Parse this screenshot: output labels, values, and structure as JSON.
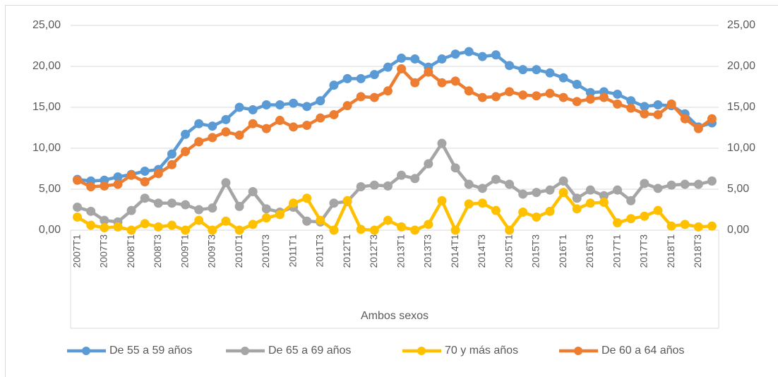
{
  "chart_data": {
    "type": "line",
    "x_label": "Ambos sexos",
    "categories": [
      "2007T1",
      null,
      "2007T3",
      null,
      "2008T1",
      null,
      "2008T3",
      null,
      "2009T1",
      null,
      "2009T3",
      null,
      "2010T1",
      null,
      "2010T3",
      null,
      "2011T1",
      null,
      "2011T3",
      null,
      "2012T1",
      null,
      "2012T3",
      null,
      "2013T1",
      null,
      "2013T3",
      null,
      "2014T1",
      null,
      "2014T3",
      null,
      "2015T1",
      null,
      "2015T3",
      null,
      "2016T1",
      null,
      "2016T3",
      null,
      "2017T1",
      null,
      "2017T3",
      null,
      "2018T1",
      null,
      "2018T3",
      null
    ],
    "series": [
      {
        "name": "De 55 a 59 años",
        "color": "#5b9bd5",
        "values": [
          6.2,
          6.0,
          6.1,
          6.5,
          6.8,
          7.2,
          7.4,
          9.3,
          11.7,
          13.0,
          12.7,
          13.5,
          15.0,
          14.7,
          15.3,
          15.3,
          15.5,
          15.1,
          15.8,
          17.7,
          18.5,
          18.5,
          19.0,
          19.9,
          21.0,
          20.9,
          19.9,
          20.9,
          21.5,
          21.8,
          21.2,
          21.4,
          20.1,
          19.6,
          19.6,
          19.2,
          18.6,
          17.8,
          16.8,
          16.9,
          16.6,
          15.8,
          15.1,
          15.3,
          15.2,
          14.2,
          12.6,
          13.1
        ]
      },
      {
        "name": "De 65 a 69 años",
        "color": "#a5a5a5",
        "values": [
          2.8,
          2.3,
          1.2,
          1.0,
          2.4,
          3.9,
          3.3,
          3.3,
          3.1,
          2.5,
          2.7,
          5.8,
          2.9,
          4.7,
          2.6,
          2.2,
          2.8,
          1.1,
          1.0,
          3.3,
          3.5,
          5.3,
          5.5,
          5.4,
          6.7,
          6.3,
          8.1,
          10.6,
          7.6,
          5.6,
          5.1,
          6.2,
          5.6,
          4.4,
          4.6,
          4.9,
          6.0,
          3.9,
          4.9,
          4.2,
          4.9,
          3.6,
          5.7,
          5.1,
          5.5,
          5.6,
          5.6,
          6.0
        ]
      },
      {
        "name": "70 y más años",
        "color": "#ffc000",
        "values": [
          1.6,
          0.6,
          0.3,
          0.4,
          0.0,
          0.8,
          0.4,
          0.6,
          0.0,
          1.2,
          0.0,
          1.1,
          0.0,
          0.7,
          1.5,
          1.9,
          3.3,
          3.9,
          1.2,
          0.0,
          3.6,
          0.1,
          0.0,
          1.2,
          0.4,
          0.0,
          0.7,
          3.6,
          0.0,
          3.2,
          3.3,
          2.4,
          0.0,
          2.2,
          1.6,
          2.3,
          4.6,
          2.6,
          3.3,
          3.4,
          0.9,
          1.4,
          1.7,
          2.4,
          0.5,
          0.7,
          0.4,
          0.5
        ]
      },
      {
        "name": "De 60 a 64 años",
        "color": "#ed7d31",
        "values": [
          6.1,
          5.3,
          5.4,
          5.6,
          6.7,
          5.9,
          6.9,
          8.0,
          9.6,
          10.8,
          11.3,
          12.0,
          11.6,
          13.0,
          12.4,
          13.4,
          12.6,
          12.8,
          13.7,
          14.1,
          15.2,
          16.3,
          16.2,
          17.0,
          19.7,
          18.0,
          19.3,
          18.0,
          18.2,
          17.0,
          16.2,
          16.3,
          16.9,
          16.5,
          16.4,
          16.7,
          16.2,
          15.7,
          16.0,
          16.2,
          15.4,
          14.9,
          14.2,
          14.1,
          15.4,
          13.6,
          12.4,
          13.6
        ]
      }
    ],
    "ylim": [
      0,
      25
    ],
    "yticks": [
      {
        "value": 0,
        "label": "0,00"
      },
      {
        "value": 5,
        "label": "5,00"
      },
      {
        "value": 10,
        "label": "10,00"
      },
      {
        "value": 15,
        "label": "15,00"
      },
      {
        "value": 20,
        "label": "20,00"
      },
      {
        "value": 25,
        "label": "25,00"
      }
    ],
    "y2lim": [
      0,
      25
    ],
    "y2ticks": [
      {
        "value": 0,
        "label": "0,00"
      },
      {
        "value": 5,
        "label": "5,00"
      },
      {
        "value": 10,
        "label": "10,00"
      },
      {
        "value": 15,
        "label": "15,00"
      },
      {
        "value": 20,
        "label": "20,00"
      },
      {
        "value": 25,
        "label": "25,00"
      }
    ],
    "grid": true,
    "legend": "bottom"
  }
}
